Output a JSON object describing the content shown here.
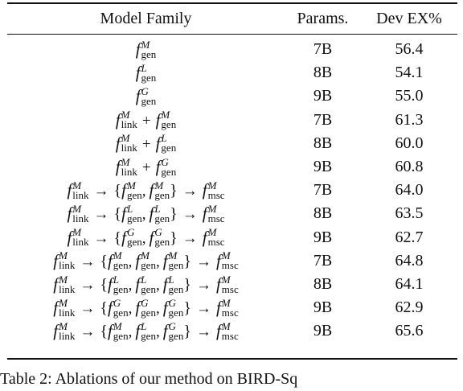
{
  "table": {
    "headers": {
      "model": "Model Family",
      "params": "Params.",
      "dev": "Dev EX%"
    },
    "rows": [
      {
        "model": [
          {
            "f": "gen",
            "s": "M"
          }
        ],
        "params": "7B",
        "dev": "56.4"
      },
      {
        "model": [
          {
            "f": "gen",
            "s": "L"
          }
        ],
        "params": "8B",
        "dev": "54.1"
      },
      {
        "model": [
          {
            "f": "gen",
            "s": "G"
          }
        ],
        "params": "9B",
        "dev": "55.0"
      },
      {
        "model": [
          {
            "f": "link",
            "s": "M"
          },
          "+",
          {
            "f": "gen",
            "s": "M"
          }
        ],
        "params": "7B",
        "dev": "61.3"
      },
      {
        "model": [
          {
            "f": "link",
            "s": "M"
          },
          "+",
          {
            "f": "gen",
            "s": "L"
          }
        ],
        "params": "8B",
        "dev": "60.0"
      },
      {
        "model": [
          {
            "f": "link",
            "s": "M"
          },
          "+",
          {
            "f": "gen",
            "s": "G"
          }
        ],
        "params": "9B",
        "dev": "60.8"
      },
      {
        "model": [
          {
            "f": "link",
            "s": "M"
          },
          "→",
          "{",
          {
            "f": "gen",
            "s": "M"
          },
          ",",
          {
            "f": "gen",
            "s": "M"
          },
          "}",
          "→",
          {
            "f": "msc",
            "s": "M"
          }
        ],
        "params": "7B",
        "dev": "64.0"
      },
      {
        "model": [
          {
            "f": "link",
            "s": "M"
          },
          "→",
          "{",
          {
            "f": "gen",
            "s": "L"
          },
          ",",
          {
            "f": "gen",
            "s": "L"
          },
          "}",
          "→",
          {
            "f": "msc",
            "s": "M"
          }
        ],
        "params": "8B",
        "dev": "63.5"
      },
      {
        "model": [
          {
            "f": "link",
            "s": "M"
          },
          "→",
          "{",
          {
            "f": "gen",
            "s": "G"
          },
          ",",
          {
            "f": "gen",
            "s": "G"
          },
          "}",
          "→",
          {
            "f": "msc",
            "s": "M"
          }
        ],
        "params": "9B",
        "dev": "62.7"
      },
      {
        "model": [
          {
            "f": "link",
            "s": "M"
          },
          "→",
          "{",
          {
            "f": "gen",
            "s": "M"
          },
          ",",
          {
            "f": "gen",
            "s": "M"
          },
          ",",
          {
            "f": "gen",
            "s": "M"
          },
          "}",
          "→",
          {
            "f": "msc",
            "s": "M"
          }
        ],
        "params": "7B",
        "dev": "64.8"
      },
      {
        "model": [
          {
            "f": "link",
            "s": "M"
          },
          "→",
          "{",
          {
            "f": "gen",
            "s": "L"
          },
          ",",
          {
            "f": "gen",
            "s": "L"
          },
          ",",
          {
            "f": "gen",
            "s": "L"
          },
          "}",
          "→",
          {
            "f": "msc",
            "s": "M"
          }
        ],
        "params": "8B",
        "dev": "64.1"
      },
      {
        "model": [
          {
            "f": "link",
            "s": "M"
          },
          "→",
          "{",
          {
            "f": "gen",
            "s": "G"
          },
          ",",
          {
            "f": "gen",
            "s": "G"
          },
          ",",
          {
            "f": "gen",
            "s": "G"
          },
          "}",
          "→",
          {
            "f": "msc",
            "s": "M"
          }
        ],
        "params": "9B",
        "dev": "62.9"
      },
      {
        "model": [
          {
            "f": "link",
            "s": "M"
          },
          "→",
          "{",
          {
            "f": "gen",
            "s": "M"
          },
          ",",
          {
            "f": "gen",
            "s": "L"
          },
          ",",
          {
            "f": "gen",
            "s": "G"
          },
          "}",
          "→",
          {
            "f": "msc",
            "s": "M"
          }
        ],
        "params": "9B",
        "dev": "65.6"
      }
    ]
  },
  "caption": "Table 2: Ablations of our method on BIRD-Sq"
}
